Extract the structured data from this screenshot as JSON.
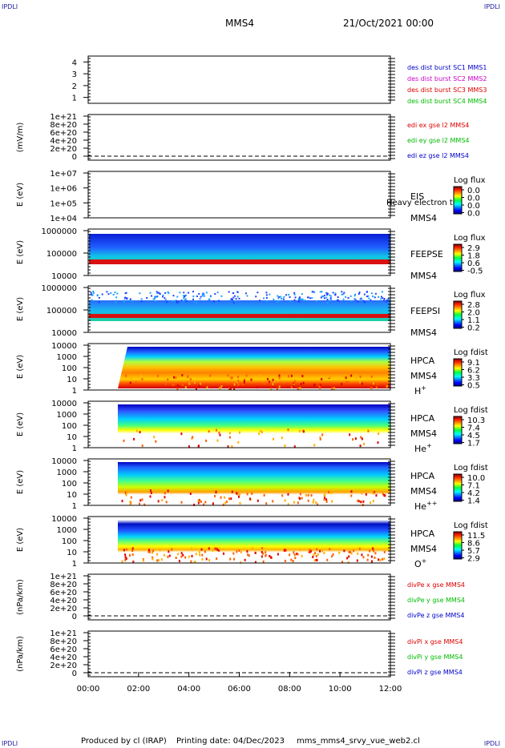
{
  "corners": {
    "tl": "IPDLI",
    "tr": "IPDLI",
    "bl": "IPDLI",
    "br": "IPDLI"
  },
  "header": {
    "spacecraft": "MMS4",
    "date": "21/Oct/2021 00:00"
  },
  "footer": {
    "produced": "Produced by cl (IRAP)",
    "printed": "Printing date: 04/Dec/2023",
    "script": "mms_mms4_srvy_vue_web2.cl"
  },
  "chart_data": [
    {
      "type": "line",
      "id": "p1",
      "ylabel": "",
      "ylim": [
        0.5,
        4.5
      ],
      "yticks": [
        "1",
        "2",
        "3",
        "4"
      ],
      "legend": [
        {
          "text": "des dist burst SC1 MMS1",
          "color": "#0000cc"
        },
        {
          "text": "des dist burst SC2 MMS2",
          "color": "#cc00cc"
        },
        {
          "text": "des dist burst SC3 MMS3",
          "color": "#dd0000"
        },
        {
          "text": "des dist burst SC4 MMS4",
          "color": "#00bb00"
        }
      ]
    },
    {
      "type": "line",
      "id": "p2",
      "ylabel": "(mV/m)",
      "yticks": [
        "0",
        "2e+20",
        "4e+20",
        "6e+20",
        "8e+20",
        "1e+21"
      ],
      "legend": [
        {
          "text": "edi ex gse l2 MMS4",
          "color": "#dd0000"
        },
        {
          "text": "edi ey gse l2 MMS4",
          "color": "#00bb00"
        },
        {
          "text": "edi ez gse l2 MMS4",
          "color": "#0000cc"
        }
      ]
    },
    {
      "type": "heatmap",
      "id": "p3",
      "ylabel": "E (eV)",
      "log": true,
      "yticks": [
        "1e+04",
        "1e+05",
        "1e+06",
        "1e+07"
      ],
      "instrument": "EIS",
      "spacecraft": "MMS4",
      "overlay": "Heavy electron to",
      "colorbar": {
        "title": "Log flux",
        "ticks": [
          "0.0",
          "0.0",
          "0.0",
          "0.0"
        ]
      }
    },
    {
      "type": "heatmap",
      "id": "p4",
      "ylabel": "E (eV)",
      "log": true,
      "yticks": [
        "10000",
        "100000",
        "1000000"
      ],
      "instrument": "FEEPSE",
      "spacecraft": "MMS4",
      "colorbar": {
        "title": "Log flux",
        "ticks": [
          "2.9",
          "1.8",
          "0.6",
          "-0.5"
        ]
      }
    },
    {
      "type": "heatmap",
      "id": "p5",
      "ylabel": "E (eV)",
      "log": true,
      "yticks": [
        "10000",
        "100000",
        "1000000"
      ],
      "instrument": "FEEPSI",
      "spacecraft": "MMS4",
      "colorbar": {
        "title": "Log flux",
        "ticks": [
          "2.8",
          "2.0",
          "1.1",
          "0.2"
        ]
      }
    },
    {
      "type": "heatmap",
      "id": "p6",
      "ylabel": "E (eV)",
      "log": true,
      "yticks": [
        "1",
        "10",
        "100",
        "1000",
        "10000"
      ],
      "instrument": "HPCA",
      "spacecraft": "MMS4",
      "species": "H",
      "charge": "+",
      "colorbar": {
        "title": "Log fdist",
        "ticks": [
          "9.1",
          "6.2",
          "3.3",
          "0.5"
        ]
      }
    },
    {
      "type": "heatmap",
      "id": "p7",
      "ylabel": "E (eV)",
      "log": true,
      "yticks": [
        "1",
        "10",
        "100",
        "1000",
        "10000"
      ],
      "instrument": "HPCA",
      "spacecraft": "MMS4",
      "species": "He",
      "charge": "+",
      "colorbar": {
        "title": "Log fdist",
        "ticks": [
          "10.3",
          "7.4",
          "4.5",
          "1.7"
        ]
      }
    },
    {
      "type": "heatmap",
      "id": "p8",
      "ylabel": "E (eV)",
      "log": true,
      "yticks": [
        "1",
        "10",
        "100",
        "1000",
        "10000"
      ],
      "instrument": "HPCA",
      "spacecraft": "MMS4",
      "species": "He",
      "charge": "++",
      "colorbar": {
        "title": "Log fdist",
        "ticks": [
          "10.0",
          "7.1",
          "4.2",
          "1.4"
        ]
      }
    },
    {
      "type": "heatmap",
      "id": "p9",
      "ylabel": "E (eV)",
      "log": true,
      "yticks": [
        "1",
        "10",
        "100",
        "1000",
        "10000"
      ],
      "instrument": "HPCA",
      "spacecraft": "MMS4",
      "species": "O",
      "charge": "+",
      "colorbar": {
        "title": "Log fdist",
        "ticks": [
          "11.5",
          "8.6",
          "5.7",
          "2.9"
        ]
      }
    },
    {
      "type": "line",
      "id": "p10",
      "ylabel": "(nPa/km)",
      "yticks": [
        "0",
        "2e+20",
        "4e+20",
        "6e+20",
        "8e+20",
        "1e+21"
      ],
      "legend": [
        {
          "text": "divPe x gse MMS4",
          "color": "#dd0000"
        },
        {
          "text": "divPe y gse MMS4",
          "color": "#00bb00"
        },
        {
          "text": "divPe z gse MMS4",
          "color": "#0000cc"
        }
      ]
    },
    {
      "type": "line",
      "id": "p11",
      "ylabel": "(nPa/km)",
      "yticks": [
        "0",
        "2e+20",
        "4e+20",
        "6e+20",
        "8e+20",
        "1e+21"
      ],
      "legend": [
        {
          "text": "divPi x gse MMS4",
          "color": "#dd0000"
        },
        {
          "text": "divPi y gse MMS4",
          "color": "#00bb00"
        },
        {
          "text": "divPi z gse MMS4",
          "color": "#0000cc"
        }
      ]
    }
  ],
  "xaxis": {
    "ticks": [
      "00:00",
      "02:00",
      "04:00",
      "06:00",
      "08:00",
      "10:00",
      "12:00"
    ],
    "range_hours": [
      0,
      12
    ]
  }
}
